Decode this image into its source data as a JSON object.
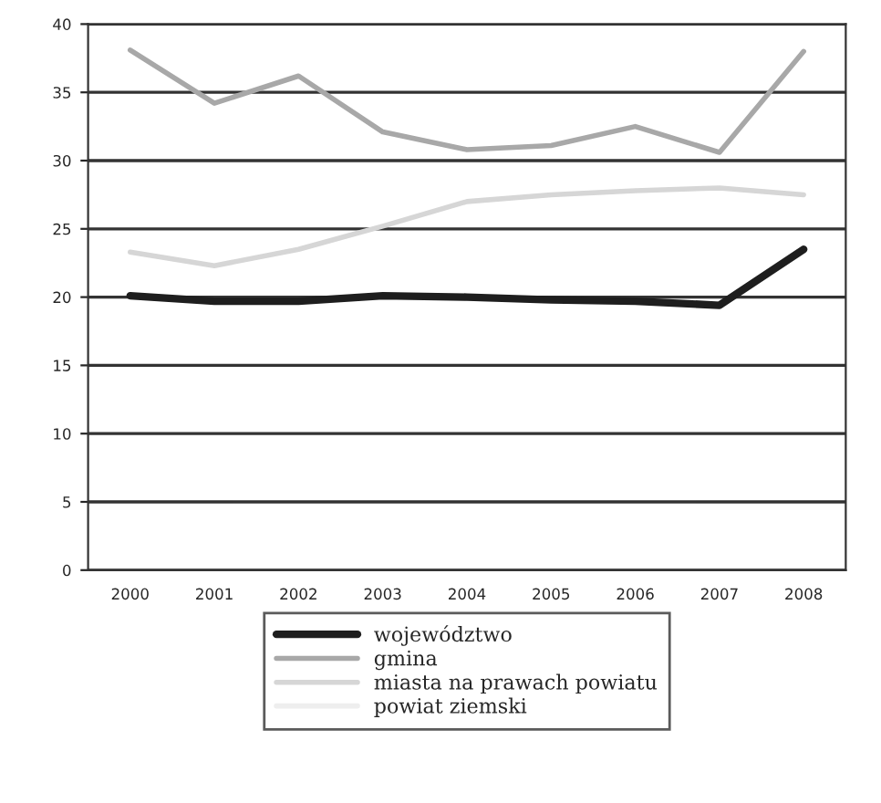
{
  "chart_data": {
    "type": "line",
    "categories": [
      "2000",
      "2001",
      "2002",
      "2003",
      "2004",
      "2005",
      "2006",
      "2007",
      "2008"
    ],
    "series": [
      {
        "name": "województwo",
        "color": "#1e1e1e",
        "values": [
          20.1,
          19.7,
          19.7,
          20.1,
          20.0,
          19.8,
          19.7,
          19.4,
          23.5
        ]
      },
      {
        "name": "gmina",
        "color": "#a8a8a8",
        "values": [
          38.1,
          34.2,
          36.2,
          32.1,
          30.8,
          31.1,
          32.5,
          30.6,
          38.0
        ]
      },
      {
        "name": "miasta na prawach powiatu",
        "color": "#d6d6d6",
        "values": [
          23.3,
          22.3,
          23.5,
          25.2,
          27.0,
          27.5,
          27.8,
          28.0,
          27.5
        ]
      },
      {
        "name": "powiat ziemski",
        "color": "#eeeeee",
        "values": [
          null,
          null,
          null,
          null,
          null,
          null,
          null,
          null,
          null
        ]
      }
    ],
    "ylim": [
      0,
      40
    ],
    "yticks": [
      0,
      5,
      10,
      15,
      20,
      25,
      30,
      35,
      40
    ],
    "grid": "y",
    "legend": "bottom",
    "marker": "none",
    "line_style": "solid"
  }
}
